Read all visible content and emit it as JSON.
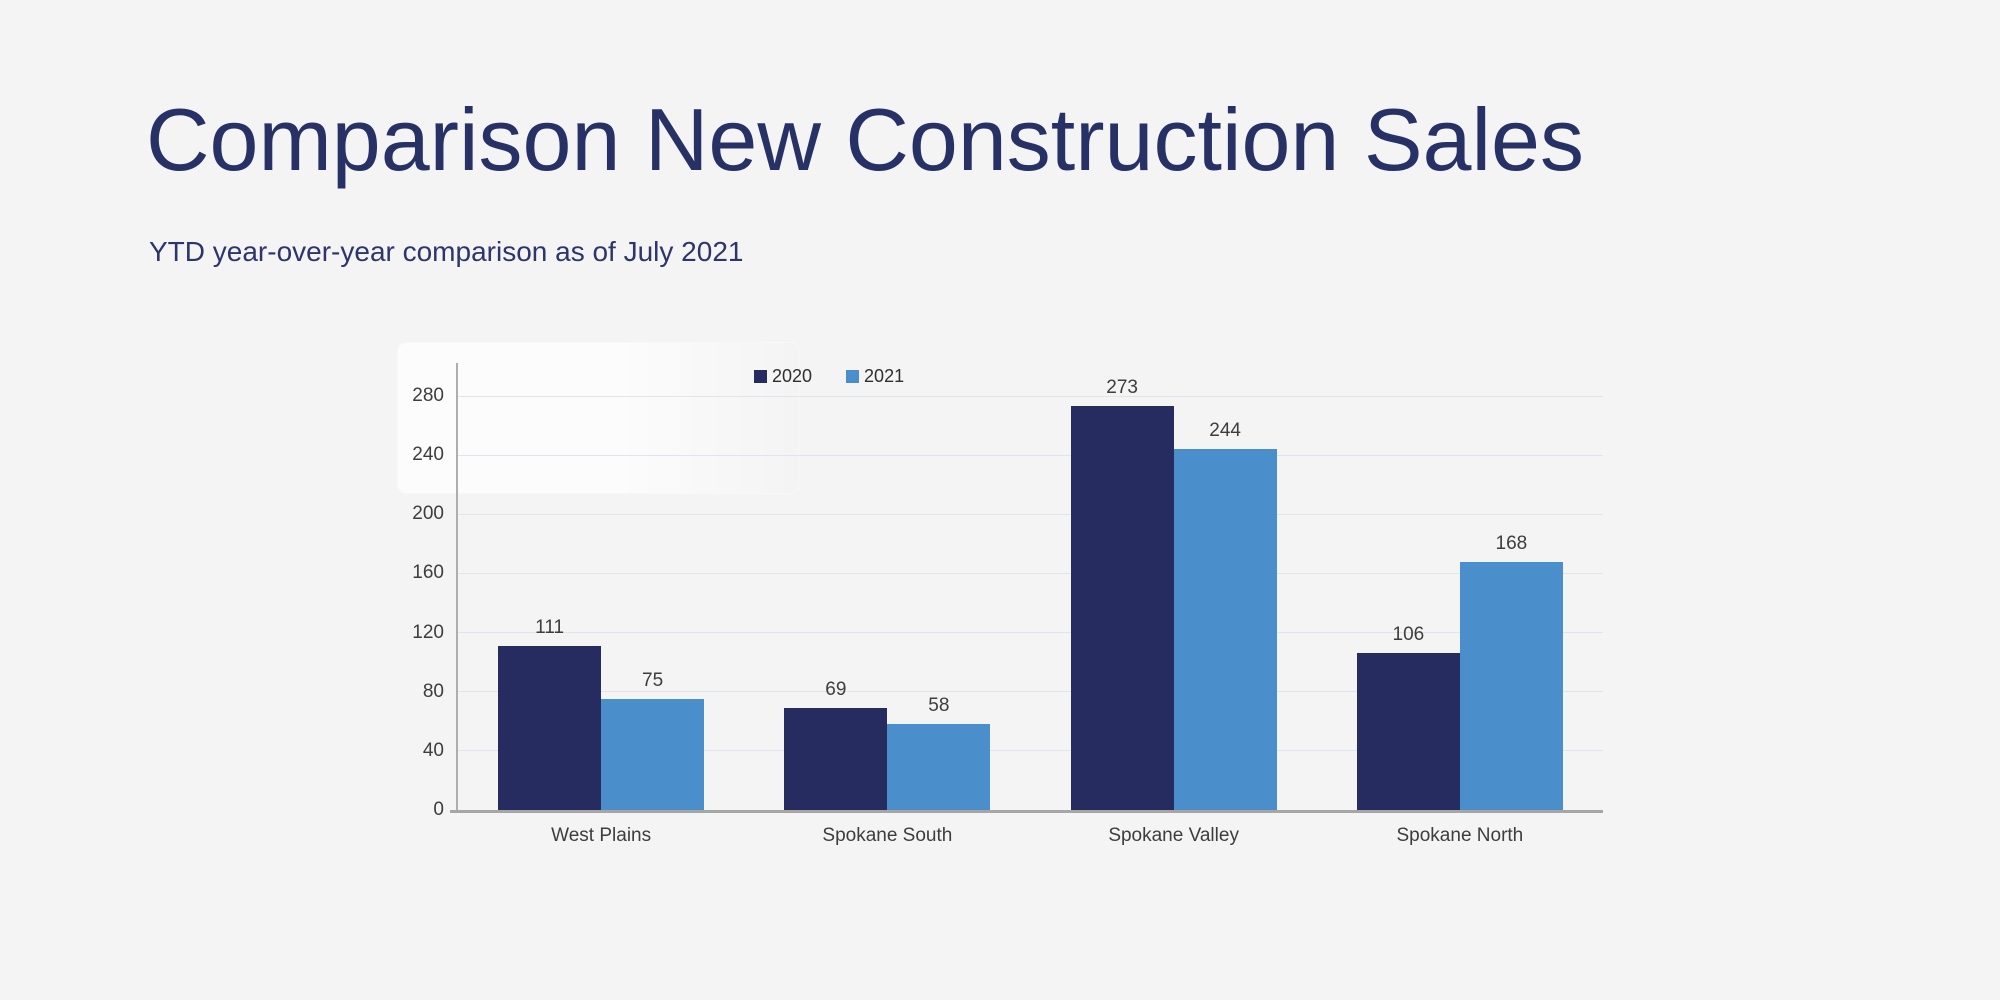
{
  "chart_data": {
    "type": "bar",
    "title": "Comparison New Construction Sales",
    "subtitle": "YTD year-over-year comparison as of July 2021",
    "categories": [
      "West Plains",
      "Spokane South",
      "Spokane Valley",
      "Spokane North"
    ],
    "series": [
      {
        "name": "2020",
        "color": "#262b60",
        "values": [
          111,
          69,
          273,
          106
        ]
      },
      {
        "name": "2021",
        "color": "#4a8ecb",
        "values": [
          75,
          58,
          244,
          168
        ]
      }
    ],
    "xlabel": "",
    "ylabel": "",
    "ylim": [
      0,
      300
    ],
    "y_ticks": [
      0,
      40,
      80,
      120,
      160,
      200,
      240,
      280
    ],
    "grid": true,
    "legend_position": "top-center",
    "data_labels": true
  },
  "colors": {
    "background": "#f4f4f5",
    "title_text": "#273166",
    "subtitle_text": "#2d356b",
    "series_2020": "#262b60",
    "series_2021": "#4a8ecb",
    "gridline": "#dfe4ed",
    "axis_line": "#aeaeae",
    "label_text": "#3d3d3d"
  }
}
